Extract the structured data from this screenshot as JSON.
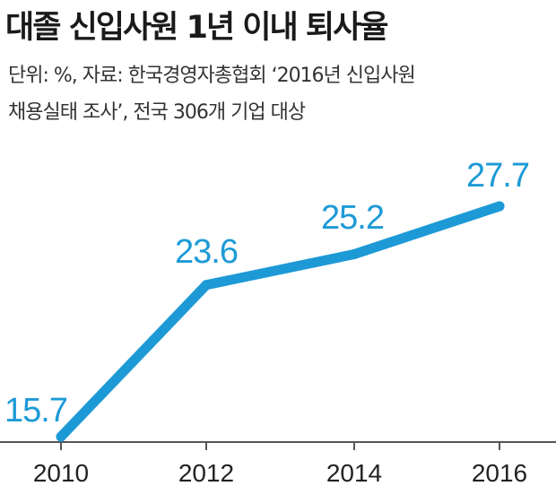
{
  "header": {
    "title": "대졸 신입사원 1년 이내 퇴사율",
    "note_line1": "단위: %, 자료: 한국경영자총협회 ‘2016년 신입사원",
    "note_line2": "채용실태 조사’, 전국 306개 기업 대상"
  },
  "colors": {
    "line": "#1d9ad6",
    "axis": "#555555",
    "text": "#222222"
  },
  "chart_data": {
    "type": "line",
    "x": [
      "2010",
      "2012",
      "2014",
      "2016"
    ],
    "values": [
      15.7,
      23.6,
      25.2,
      27.7
    ],
    "data_labels": [
      "15.7",
      "23.6",
      "25.2",
      "27.7"
    ],
    "xlabel": "",
    "ylabel": "",
    "grid": false,
    "legend": "none"
  }
}
